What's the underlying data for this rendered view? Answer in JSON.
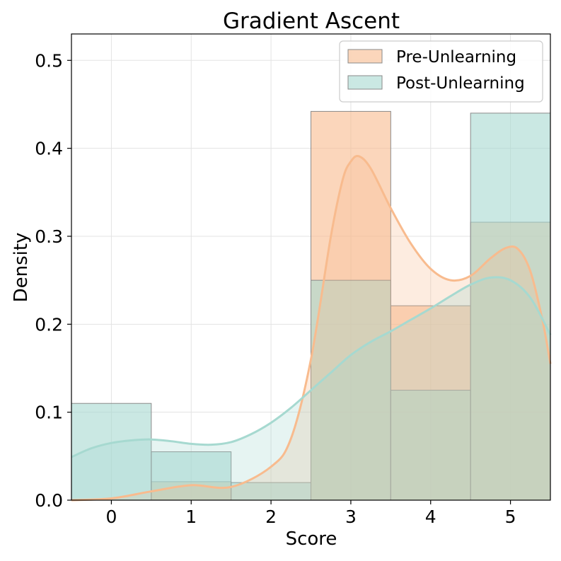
{
  "chart_data": {
    "type": "bar",
    "title": "Gradient Ascent",
    "xlabel": "Score",
    "ylabel": "Density",
    "categories": [
      "0",
      "1",
      "2",
      "3",
      "4",
      "5"
    ],
    "x_ticks": [
      0,
      1,
      2,
      3,
      4,
      5
    ],
    "y_ticks": [
      0.0,
      0.1,
      0.2,
      0.3,
      0.4,
      0.5
    ],
    "y_tick_labels": [
      "0.0",
      "0.1",
      "0.2",
      "0.3",
      "0.4",
      "0.5"
    ],
    "xlim": [
      -0.5,
      5.5
    ],
    "ylim": [
      0,
      0.53
    ],
    "grid": true,
    "legend_position": "top-right",
    "series": [
      {
        "name": "Pre-Unlearning",
        "color": "#f8bb8e",
        "edge_color": "#8a8a8a",
        "values": [
          0.0,
          0.021,
          0.0,
          0.442,
          0.221,
          0.316
        ],
        "kde": {
          "x": [
            -0.5,
            0,
            0.5,
            1.0,
            1.5,
            2.0,
            2.25,
            2.5,
            2.75,
            2.9,
            3.0,
            3.1,
            3.25,
            3.5,
            3.75,
            4.0,
            4.25,
            4.5,
            4.75,
            4.95,
            5.1,
            5.25,
            5.4,
            5.5
          ],
          "y": [
            0.0,
            0.002,
            0.01,
            0.017,
            0.015,
            0.038,
            0.07,
            0.16,
            0.3,
            0.365,
            0.385,
            0.391,
            0.377,
            0.332,
            0.292,
            0.263,
            0.25,
            0.255,
            0.275,
            0.287,
            0.285,
            0.26,
            0.205,
            0.155
          ]
        }
      },
      {
        "name": "Post-Unlearning",
        "color": "#a6d9d0",
        "edge_color": "#8a8a8a",
        "values": [
          0.11,
          0.055,
          0.02,
          0.25,
          0.125,
          0.44
        ],
        "kde": {
          "x": [
            -0.5,
            -0.25,
            0,
            0.25,
            0.5,
            0.75,
            1.0,
            1.25,
            1.5,
            1.75,
            2.0,
            2.25,
            2.5,
            2.75,
            3.0,
            3.25,
            3.5,
            3.75,
            4.0,
            4.25,
            4.5,
            4.75,
            5.0,
            5.25,
            5.5
          ],
          "y": [
            0.049,
            0.059,
            0.065,
            0.068,
            0.069,
            0.067,
            0.064,
            0.063,
            0.066,
            0.075,
            0.088,
            0.105,
            0.125,
            0.145,
            0.165,
            0.18,
            0.192,
            0.205,
            0.218,
            0.232,
            0.245,
            0.253,
            0.25,
            0.23,
            0.188
          ]
        }
      }
    ]
  }
}
